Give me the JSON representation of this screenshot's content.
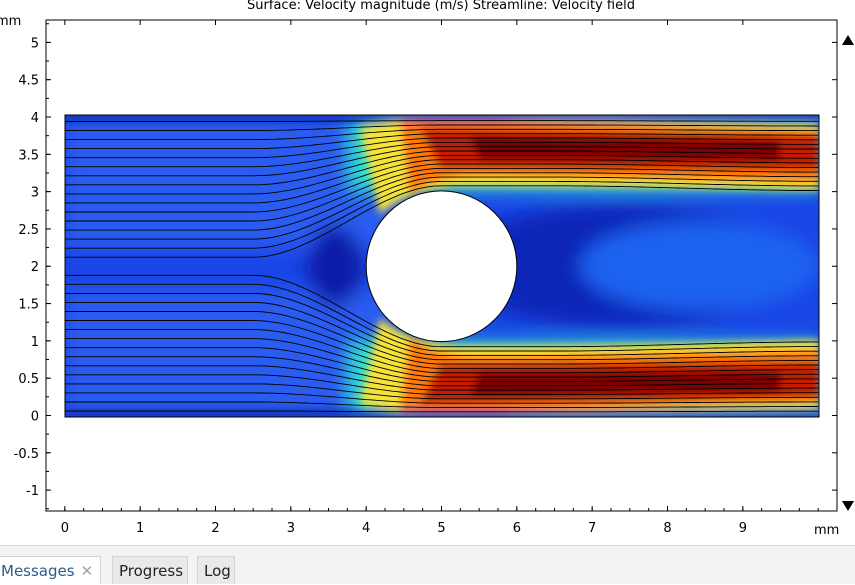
{
  "plot": {
    "title": "Surface: Velocity magnitude (m/s)  Streamline: Velocity field",
    "y_unit": "mm",
    "x_unit": "mm"
  },
  "chart_data": {
    "type": "heatmap",
    "title": "Surface: Velocity magnitude (m/s)  Streamline: Velocity field",
    "x_ticks": [
      0,
      1,
      2,
      3,
      4,
      5,
      6,
      7,
      8,
      9
    ],
    "y_ticks": [
      5,
      4.5,
      4,
      3.5,
      3,
      2.5,
      2,
      1.5,
      1,
      0.5,
      0,
      -0.5,
      -1
    ],
    "xlim": [
      -0.25,
      10.25
    ],
    "ylim": [
      -1.28,
      5.3
    ],
    "domain": {
      "x": [
        0,
        10
      ],
      "y": [
        0,
        4
      ]
    },
    "obstacle": {
      "cx": 5,
      "cy": 2,
      "r": 1
    },
    "streamline_count": 33,
    "colormap": [
      "#00007f",
      "#0036ff",
      "#1aa3ff",
      "#3affc4",
      "#ffe600",
      "#ff5a00",
      "#7f0000"
    ]
  },
  "tabs": [
    {
      "label": "Messages",
      "active": true,
      "close": "✕"
    },
    {
      "label": "Progress",
      "active": false
    },
    {
      "label": "Log",
      "active": false
    }
  ],
  "icons": {
    "scroll_up": "triangle-up-icon",
    "scroll_down": "triangle-down-icon"
  }
}
